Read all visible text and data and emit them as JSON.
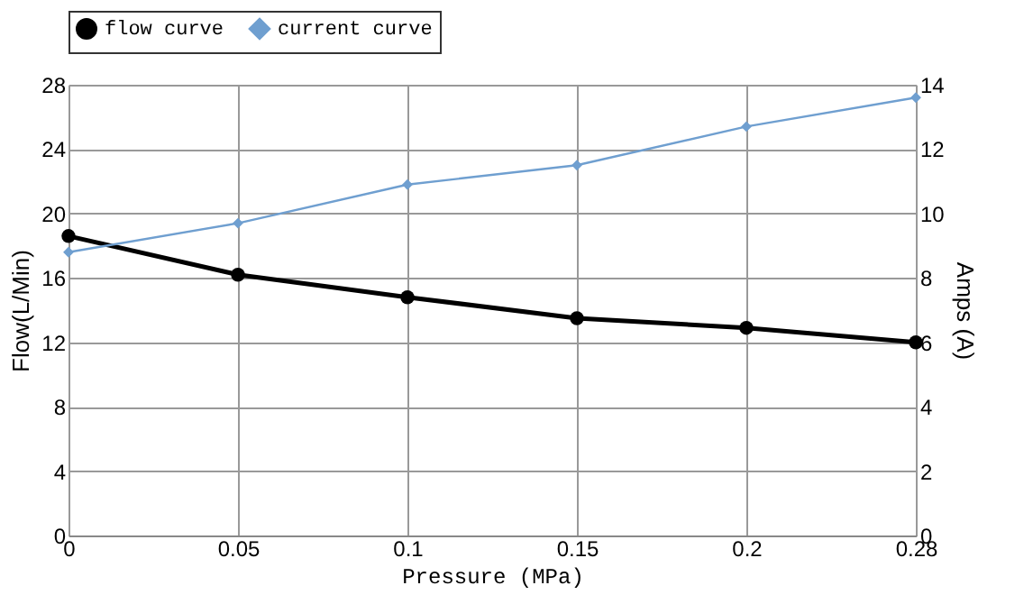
{
  "chart_data": {
    "type": "line",
    "xlabel": "Pressure (MPa)",
    "ylabel": "Flow(L/Min)",
    "y2label": "Amps (A)",
    "categories": [
      "0",
      "0.05",
      "0.1",
      "0.15",
      "0.2",
      "0.28"
    ],
    "series": [
      {
        "name": "flow curve",
        "color": "#000000",
        "marker": "circle",
        "values": [
          18.6,
          16.2,
          14.8,
          13.5,
          12.9,
          12.0
        ]
      },
      {
        "name": "current curve",
        "color": "#6f9fd0",
        "marker": "diamond",
        "axis": "y2",
        "values": [
          8.8,
          9.7,
          10.9,
          11.5,
          12.7,
          13.6
        ]
      }
    ],
    "ylim": [
      0,
      28
    ],
    "yticks": [
      0,
      4,
      8,
      12,
      16,
      20,
      24,
      28
    ],
    "y2lim": [
      0,
      14
    ],
    "y2ticks": [
      0,
      2,
      4,
      6,
      8,
      10,
      12,
      14
    ],
    "grid": true,
    "legend": "top",
    "line_style": "solid"
  }
}
